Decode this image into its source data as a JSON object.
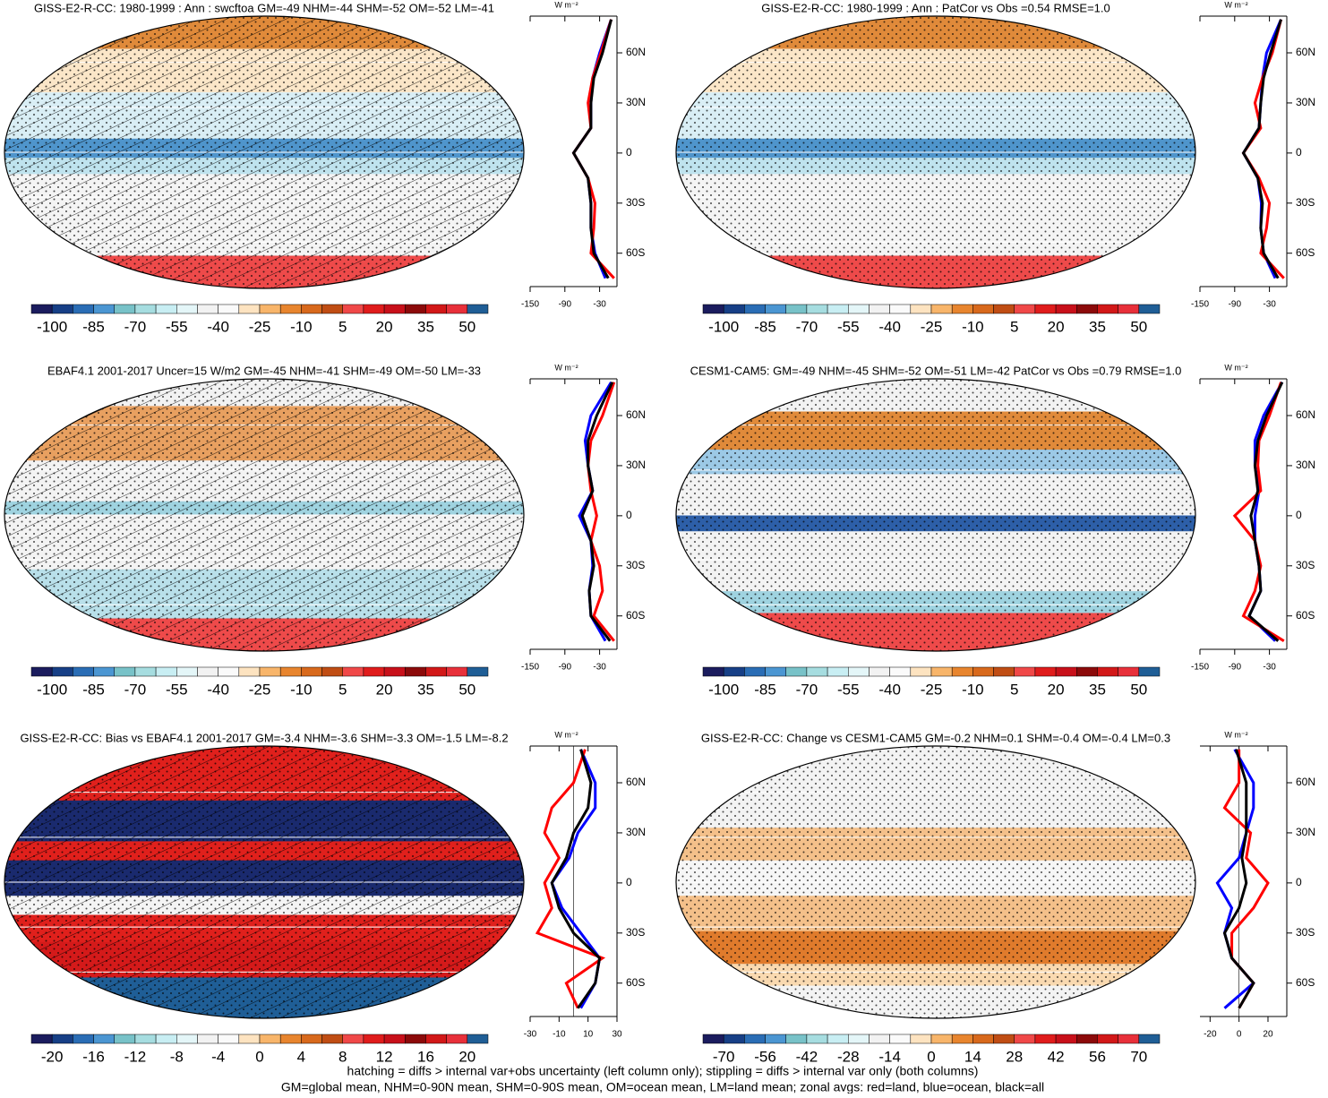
{
  "colorbar_colors": [
    "#1b1c5e",
    "#173f86",
    "#2a6db5",
    "#4b96d2",
    "#78c2c8",
    "#a6dde0",
    "#c8eef3",
    "#e4f6f8",
    "#f2f2f2",
    "#fafafa",
    "#fde3c0",
    "#f8b56a",
    "#e8852e",
    "#d8691c",
    "#c04d14",
    "#f04848",
    "#e01c1c",
    "#c8101a",
    "#8c0a0a",
    "#d21818",
    "#e8303a",
    "#1f5e96"
  ],
  "panels": [
    {
      "title": "GISS-E2-R-CC: 1980-1999 : Ann : swcftoa GM=-49 NHM=-44 SHM=-52 OM=-52 LM=-41",
      "colorbar_labels": [
        -100,
        -85,
        -70,
        -55,
        -40,
        -25,
        -10,
        5,
        20,
        35,
        50
      ],
      "zonal": {
        "unit": "W m⁻²",
        "xlim": [
          -150,
          0
        ],
        "xticks": [
          -150,
          -90,
          -30
        ],
        "ylim": [
          -80,
          82
        ],
        "yticks": [
          {
            "value": 60,
            "label": "60N"
          },
          {
            "value": 30,
            "label": "30N"
          },
          0,
          {
            "value": -30,
            "label": "30S"
          },
          {
            "value": -60,
            "label": "60S"
          }
        ],
        "lat": [
          80,
          60,
          45,
          30,
          15,
          0,
          -15,
          -30,
          -45,
          -60,
          -75
        ],
        "series": [
          {
            "color": "#0000ff",
            "values": [
              -10,
              -30,
              -42,
              -45,
              -45,
              -75,
              -50,
              -45,
              -45,
              -38,
              -20
            ]
          },
          {
            "color": "#ff0000",
            "values": [
              -10,
              -28,
              -42,
              -50,
              -45,
              -75,
              -50,
              -38,
              -40,
              -45,
              -5
            ]
          },
          {
            "color": "#000000",
            "values": [
              -10,
              -25,
              -40,
              -45,
              -45,
              -75,
              -50,
              -45,
              -45,
              -40,
              -15
            ]
          }
        ]
      }
    },
    {
      "title": "GISS-E2-R-CC: 1980-1999 : Ann : PatCor vs Obs =0.54 RMSE=1.0",
      "colorbar_labels": [
        -100,
        -85,
        -70,
        -55,
        -40,
        -25,
        -10,
        5,
        20,
        35,
        50
      ],
      "zonal": {
        "unit": "W m⁻²",
        "xlim": [
          -150,
          0
        ],
        "xticks": [
          -150,
          -90,
          -30
        ],
        "ylim": [
          -80,
          82
        ],
        "yticks": [
          {
            "value": 60,
            "label": "60N"
          },
          {
            "value": 30,
            "label": "30N"
          },
          0,
          {
            "value": -30,
            "label": "30S"
          },
          {
            "value": -60,
            "label": "60S"
          }
        ],
        "lat": [
          80,
          60,
          45,
          30,
          15,
          0,
          -15,
          -30,
          -45,
          -60,
          -75
        ],
        "series": [
          {
            "color": "#0000ff",
            "values": [
              -10,
              -35,
              -42,
              -45,
              -48,
              -75,
              -50,
              -44,
              -45,
              -40,
              -20
            ]
          },
          {
            "color": "#ff0000",
            "values": [
              -10,
              -25,
              -42,
              -55,
              -45,
              -75,
              -48,
              -30,
              -35,
              -45,
              -5
            ]
          },
          {
            "color": "#000000",
            "values": [
              -10,
              -28,
              -40,
              -45,
              -48,
              -75,
              -50,
              -42,
              -45,
              -40,
              -15
            ]
          }
        ]
      }
    },
    {
      "title": "EBAF4.1 2001-2017 Uncer=15 W/m2 GM=-45 NHM=-41 SHM=-49 OM=-50 LM=-33",
      "colorbar_labels": [
        -100,
        -85,
        -70,
        -55,
        -40,
        -25,
        -10,
        5,
        20,
        35,
        50
      ],
      "zonal": {
        "unit": "W m⁻²",
        "xlim": [
          -150,
          0
        ],
        "xticks": [
          -150,
          -90,
          -30
        ],
        "ylim": [
          -80,
          82
        ],
        "yticks": [
          {
            "value": 60,
            "label": "60N"
          },
          {
            "value": 30,
            "label": "30N"
          },
          0,
          {
            "value": -30,
            "label": "30S"
          },
          {
            "value": -60,
            "label": "60S"
          }
        ],
        "lat": [
          80,
          60,
          45,
          30,
          15,
          0,
          -15,
          -30,
          -45,
          -60,
          -75
        ],
        "series": [
          {
            "color": "#0000ff",
            "values": [
              -10,
              -45,
              -55,
              -50,
              -42,
              -65,
              -45,
              -42,
              -48,
              -45,
              -20
            ]
          },
          {
            "color": "#ff0000",
            "values": [
              -5,
              -25,
              -45,
              -50,
              -45,
              -35,
              -45,
              -30,
              -25,
              -40,
              -5
            ]
          },
          {
            "color": "#000000",
            "values": [
              -8,
              -35,
              -50,
              -50,
              -42,
              -60,
              -45,
              -40,
              -48,
              -45,
              -12
            ]
          }
        ]
      }
    },
    {
      "title": "CESM1-CAM5: GM=-49 NHM=-45 SHM=-52 OM=-51 LM=-42 PatCor vs Obs =0.79 RMSE=1.0",
      "colorbar_labels": [
        -100,
        -85,
        -70,
        -55,
        -40,
        -25,
        -10,
        5,
        20,
        35,
        50
      ],
      "zonal": {
        "unit": "W m⁻²",
        "xlim": [
          -150,
          0
        ],
        "xticks": [
          -150,
          -90,
          -30
        ],
        "ylim": [
          -80,
          82
        ],
        "yticks": [
          {
            "value": 60,
            "label": "60N"
          },
          {
            "value": 30,
            "label": "30N"
          },
          0,
          {
            "value": -30,
            "label": "30S"
          },
          {
            "value": -60,
            "label": "60S"
          }
        ],
        "lat": [
          80,
          60,
          45,
          30,
          15,
          0,
          -15,
          -30,
          -45,
          -60,
          -75
        ],
        "series": [
          {
            "color": "#0000ff",
            "values": [
              -8,
              -40,
              -55,
              -55,
              -48,
              -55,
              -55,
              -48,
              -45,
              -65,
              -20
            ]
          },
          {
            "color": "#ff0000",
            "values": [
              -10,
              -30,
              -48,
              -50,
              -45,
              -90,
              -55,
              -45,
              -55,
              -75,
              -5
            ]
          },
          {
            "color": "#000000",
            "values": [
              -8,
              -35,
              -50,
              -55,
              -50,
              -62,
              -55,
              -48,
              -45,
              -65,
              -15
            ]
          }
        ]
      }
    },
    {
      "title": "GISS-E2-R-CC: Bias vs EBAF4.1 2001-2017 GM=-3.4 NHM=-3.6 SHM=-3.3 OM=-1.5 LM=-8.2",
      "colorbar_labels": [
        -20,
        -16,
        -12,
        -8,
        -4,
        0,
        4,
        8,
        12,
        16,
        20
      ],
      "zonal": {
        "unit": "W m⁻²",
        "xlim": [
          -30,
          30
        ],
        "xticks": [
          -30,
          -10,
          10,
          30
        ],
        "ylim": [
          -80,
          82
        ],
        "yticks": [
          {
            "value": 60,
            "label": "60N"
          },
          {
            "value": 30,
            "label": "30N"
          },
          0,
          {
            "value": -30,
            "label": "30S"
          },
          {
            "value": -60,
            "label": "60S"
          }
        ],
        "lat": [
          80,
          60,
          45,
          30,
          15,
          0,
          -15,
          -30,
          -45,
          -60,
          -75
        ],
        "series": [
          {
            "color": "#0000ff",
            "values": [
              5,
              15,
              15,
              3,
              -3,
              -15,
              -8,
              5,
              18,
              15,
              5
            ]
          },
          {
            "color": "#ff0000",
            "values": [
              8,
              0,
              -15,
              -20,
              -10,
              -20,
              -15,
              -25,
              20,
              -5,
              3
            ]
          },
          {
            "color": "#000000",
            "values": [
              5,
              12,
              10,
              0,
              -5,
              -15,
              -10,
              0,
              18,
              15,
              3
            ]
          }
        ]
      }
    },
    {
      "title": "GISS-E2-R-CC: Change vs CESM1-CAM5 GM=-0.2 NHM=0.1 SHM=-0.4 OM=-0.4 LM=0.3",
      "colorbar_labels": [
        -70,
        -56,
        -42,
        -28,
        -14,
        0,
        14,
        28,
        42,
        56,
        70
      ],
      "zonal": {
        "unit": "W m⁻²",
        "xlim": [
          -27,
          33
        ],
        "xticks": [
          -20,
          0,
          20
        ],
        "ylim": [
          -80,
          82
        ],
        "yticks": [
          {
            "value": 60,
            "label": "60N"
          },
          {
            "value": 30,
            "label": "30N"
          },
          0,
          {
            "value": -30,
            "label": "30S"
          },
          {
            "value": -60,
            "label": "60S"
          }
        ],
        "lat": [
          80,
          60,
          45,
          30,
          15,
          0,
          -15,
          -30,
          -45,
          -60,
          -75
        ],
        "series": [
          {
            "color": "#0000ff",
            "values": [
              -3,
              10,
              10,
              5,
              0,
              -15,
              -5,
              -10,
              -5,
              10,
              -10
            ]
          },
          {
            "color": "#ff0000",
            "values": [
              0,
              0,
              -10,
              8,
              5,
              20,
              10,
              -5,
              -5,
              10,
              0
            ]
          },
          {
            "color": "#000000",
            "values": [
              -2,
              5,
              5,
              5,
              2,
              5,
              0,
              -10,
              -5,
              10,
              0
            ]
          }
        ]
      }
    }
  ],
  "footer": [
    "hatching = diffs > internal var+obs uncertainty (left column only); stippling = diffs > internal var only (both columns)",
    "GM=global mean, NHM=0-90N mean, SHM=0-90S mean, OM=ocean mean, LM=land mean; zonal avgs: red=land, blue=ocean, black=all"
  ]
}
